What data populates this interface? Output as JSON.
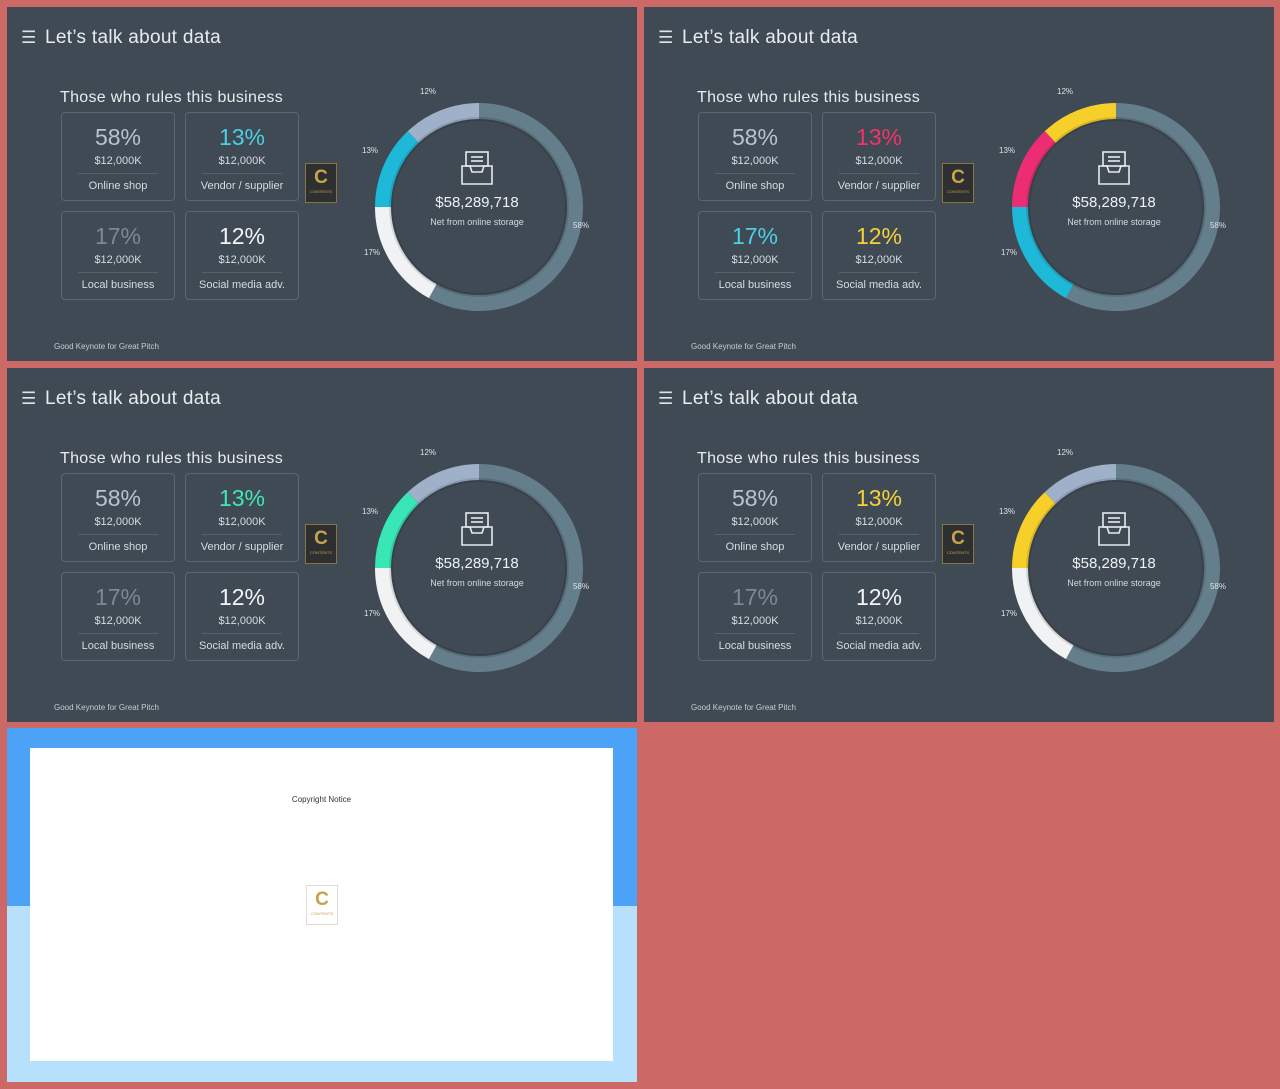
{
  "slides": [
    {
      "title": "Let’s talk about data",
      "subtitle": "Those who rules this business",
      "footer": "Good Keynote for Great Pitch",
      "logo": {
        "letter": "C",
        "text": "CONTENTS"
      },
      "center": {
        "amount": "$58,289,718",
        "label": "Net from  online storage"
      },
      "boxes": [
        {
          "percent": "58%",
          "amount": "$12,000K",
          "label": "Online shop",
          "color": "#b7c3d3"
        },
        {
          "percent": "13%",
          "amount": "$12,000K",
          "label": "Vendor / supplier",
          "color": "#4dcfe4"
        },
        {
          "percent": "17%",
          "amount": "$12,000K",
          "label": "Local business",
          "color": "#7d8893"
        },
        {
          "percent": "12%",
          "amount": "$12,000K",
          "label": "Social media adv.",
          "color": "#f3f5f7"
        }
      ],
      "chart_data": {
        "type": "pie",
        "categories": [
          "Online shop",
          "Social media adv.",
          "Vendor / supplier",
          "Local business"
        ],
        "values": [
          58,
          12,
          13,
          17
        ],
        "data_labels": [
          "58%",
          "12%",
          "13%",
          "17%"
        ],
        "colors": [
          "#647e8b",
          "#9fb0c9",
          "#1eb8d8",
          "#f0f2f4"
        ]
      }
    },
    {
      "title": "Let’s talk about data",
      "subtitle": "Those who rules this business",
      "footer": "Good Keynote for Great Pitch",
      "logo": {
        "letter": "C",
        "text": "CONTENTS"
      },
      "center": {
        "amount": "$58,289,718",
        "label": "Net from  online storage"
      },
      "boxes": [
        {
          "percent": "58%",
          "amount": "$12,000K",
          "label": "Online shop",
          "color": "#b7c3d3"
        },
        {
          "percent": "13%",
          "amount": "$12,000K",
          "label": "Vendor / supplier",
          "color": "#f0336b"
        },
        {
          "percent": "17%",
          "amount": "$12,000K",
          "label": "Local business",
          "color": "#4dcfe4"
        },
        {
          "percent": "12%",
          "amount": "$12,000K",
          "label": "Social media adv.",
          "color": "#f5d23a"
        }
      ],
      "chart_data": {
        "type": "pie",
        "categories": [
          "Online shop",
          "Social media adv.",
          "Vendor / supplier",
          "Local business"
        ],
        "values": [
          58,
          12,
          13,
          17
        ],
        "data_labels": [
          "58%",
          "12%",
          "13%",
          "17%"
        ],
        "colors": [
          "#647e8b",
          "#f7cf2a",
          "#ec2d74",
          "#1eb8d8"
        ]
      }
    },
    {
      "title": "Let’s talk about data",
      "subtitle": "Those who rules this business",
      "footer": "Good Keynote for Great Pitch",
      "logo": {
        "letter": "C",
        "text": "CONTENTS"
      },
      "center": {
        "amount": "$58,289,718",
        "label": "Net from  online storage"
      },
      "boxes": [
        {
          "percent": "58%",
          "amount": "$12,000K",
          "label": "Online shop",
          "color": "#b7c3d3"
        },
        {
          "percent": "13%",
          "amount": "$12,000K",
          "label": "Vendor / supplier",
          "color": "#41e8b4"
        },
        {
          "percent": "17%",
          "amount": "$12,000K",
          "label": "Local business",
          "color": "#7d8893"
        },
        {
          "percent": "12%",
          "amount": "$12,000K",
          "label": "Social media adv.",
          "color": "#f3f5f7"
        }
      ],
      "chart_data": {
        "type": "pie",
        "categories": [
          "Online shop",
          "Social media adv.",
          "Vendor / supplier",
          "Local business"
        ],
        "values": [
          58,
          12,
          13,
          17
        ],
        "data_labels": [
          "58%",
          "12%",
          "13%",
          "17%"
        ],
        "colors": [
          "#647e8b",
          "#9fb0c9",
          "#38e6b6",
          "#f0f2f4"
        ]
      }
    },
    {
      "title": "Let’s talk about data",
      "subtitle": "Those who rules this business",
      "footer": "Good Keynote for Great Pitch",
      "logo": {
        "letter": "C",
        "text": "CONTENTS"
      },
      "center": {
        "amount": "$58,289,718",
        "label": "Net from  online storage"
      },
      "boxes": [
        {
          "percent": "58%",
          "amount": "$12,000K",
          "label": "Online shop",
          "color": "#b7c3d3"
        },
        {
          "percent": "13%",
          "amount": "$12,000K",
          "label": "Vendor / supplier",
          "color": "#f5d23a"
        },
        {
          "percent": "17%",
          "amount": "$12,000K",
          "label": "Local business",
          "color": "#7d8893"
        },
        {
          "percent": "12%",
          "amount": "$12,000K",
          "label": "Social media adv.",
          "color": "#f3f5f7"
        }
      ],
      "chart_data": {
        "type": "pie",
        "categories": [
          "Online shop",
          "Social media adv.",
          "Vendor / supplier",
          "Local business"
        ],
        "values": [
          58,
          12,
          13,
          17
        ],
        "data_labels": [
          "58%",
          "12%",
          "13%",
          "17%"
        ],
        "colors": [
          "#647e8b",
          "#9fb0c9",
          "#f7cf2a",
          "#f0f2f4"
        ]
      }
    }
  ],
  "copyright": {
    "title": "Copyright Notice",
    "logo": {
      "letter": "C",
      "text": "CONTENTS"
    }
  }
}
